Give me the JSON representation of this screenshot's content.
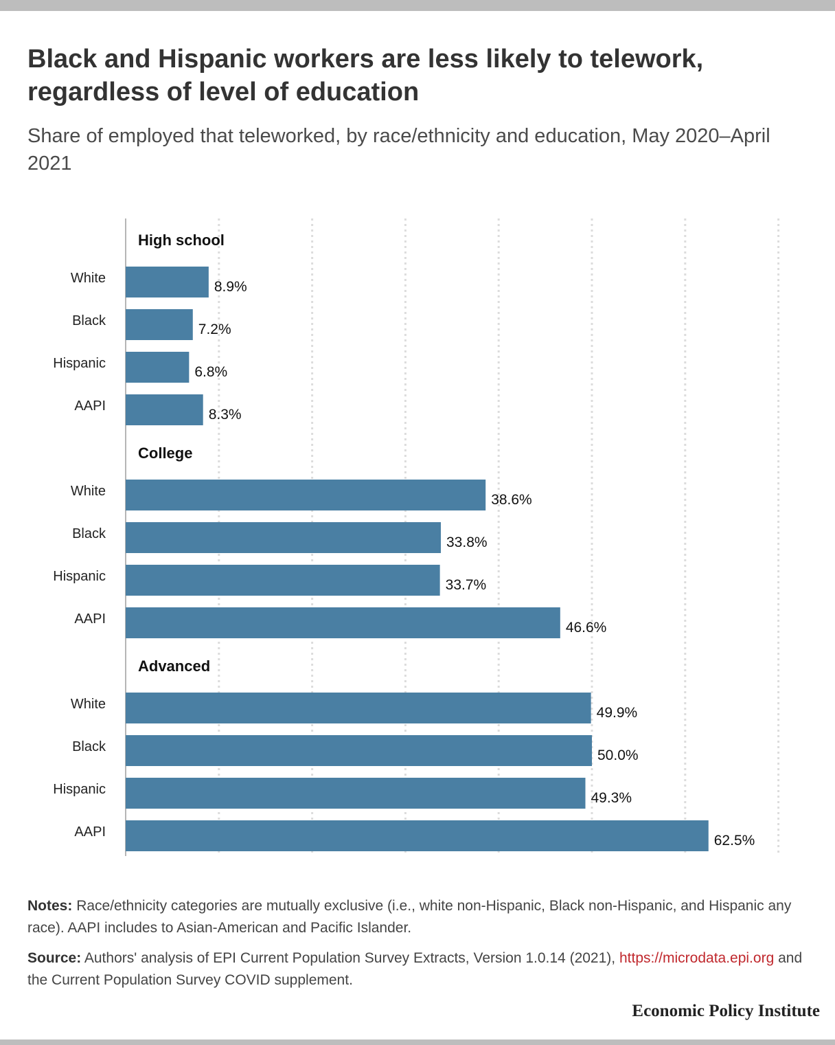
{
  "title": "Black and Hispanic workers are less likely to telework, regardless of level of education",
  "subtitle": "Share of employed that teleworked, by race/ethnicity and education, May 2020–April 2021",
  "notes": {
    "label": "Notes:",
    "text": "Race/ethnicity categories are mutually exclusive (i.e., white non-Hispanic, Black non-Hispanic, and Hispanic any race). AAPI includes to Asian-American and Pacific Islander."
  },
  "source": {
    "label": "Source:",
    "text_before": "Authors' analysis of EPI Current Population Survey Extracts, Version 1.0.14 (2021),",
    "link_text": "https://microdata.epi.org",
    "text_after": "and the Current Population Survey COVID supplement."
  },
  "brand": "Economic Policy Institute",
  "colors": {
    "bar": "#4a7fa3",
    "grid": "#dcdcdc",
    "axis": "#b5b5b5",
    "link": "#c0282d"
  },
  "chart_data": {
    "type": "bar",
    "orientation": "horizontal",
    "title": "Black and Hispanic workers are less likely to telework, regardless of level of education",
    "subtitle": "Share of employed that teleworked, by race/ethnicity and education, May 2020–April 2021",
    "xlabel": "",
    "ylabel": "",
    "xlim": [
      0,
      70
    ],
    "grid": true,
    "value_format": "percent_1dp",
    "groups": [
      {
        "name": "High school",
        "categories": [
          "White",
          "Black",
          "Hispanic",
          "AAPI"
        ],
        "values": [
          8.9,
          7.2,
          6.8,
          8.3
        ],
        "labels": [
          "8.9%",
          "7.2%",
          "6.8%",
          "8.3%"
        ]
      },
      {
        "name": "College",
        "categories": [
          "White",
          "Black",
          "Hispanic",
          "AAPI"
        ],
        "values": [
          38.6,
          33.8,
          33.7,
          46.6
        ],
        "labels": [
          "38.6%",
          "33.8%",
          "33.7%",
          "46.6%"
        ]
      },
      {
        "name": "Advanced",
        "categories": [
          "White",
          "Black",
          "Hispanic",
          "AAPI"
        ],
        "values": [
          49.9,
          50.0,
          49.3,
          62.5
        ],
        "labels": [
          "49.9%",
          "50.0%",
          "49.3%",
          "62.5%"
        ]
      }
    ]
  }
}
